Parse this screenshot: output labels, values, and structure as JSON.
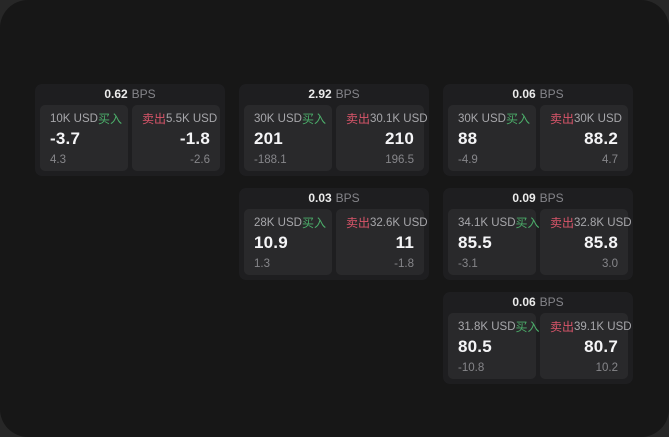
{
  "window": {
    "outer_bg": "#272727",
    "bg": "#171717"
  },
  "labels": {
    "buy": "买入",
    "sell": "卖出",
    "bps_unit": "BPS"
  },
  "colors": {
    "buy_green": "#4caf6b",
    "sell_red": "#d9556a",
    "card_bg": "#1e1e20",
    "panel_bg": "#29292b"
  },
  "cards": [
    {
      "bps": "0.62",
      "col": 1,
      "row": 1,
      "buy": {
        "notional": "10K USD",
        "value": "-3.7",
        "delta": "4.3"
      },
      "sell": {
        "notional": "5.5K USD",
        "value": "-1.8",
        "delta": "-2.6"
      }
    },
    {
      "bps": "2.92",
      "col": 2,
      "row": 1,
      "buy": {
        "notional": "30K USD",
        "value": "201",
        "delta": "-188.1"
      },
      "sell": {
        "notional": "30.1K USD",
        "value": "210",
        "delta": "196.5"
      }
    },
    {
      "bps": "0.06",
      "col": 3,
      "row": 1,
      "buy": {
        "notional": "30K USD",
        "value": "88",
        "delta": "-4.9"
      },
      "sell": {
        "notional": "30K USD",
        "value": "88.2",
        "delta": "4.7"
      }
    },
    {
      "bps": "0.03",
      "col": 2,
      "row": 2,
      "buy": {
        "notional": "28K USD",
        "value": "10.9",
        "delta": "1.3"
      },
      "sell": {
        "notional": "32.6K USD",
        "value": "11",
        "delta": "-1.8"
      }
    },
    {
      "bps": "0.09",
      "col": 3,
      "row": 2,
      "buy": {
        "notional": "34.1K USD",
        "value": "85.5",
        "delta": "-3.1"
      },
      "sell": {
        "notional": "32.8K USD",
        "value": "85.8",
        "delta": "3.0"
      }
    },
    {
      "bps": "0.06",
      "col": 3,
      "row": 3,
      "buy": {
        "notional": "31.8K USD",
        "value": "80.5",
        "delta": "-10.8"
      },
      "sell": {
        "notional": "39.1K USD",
        "value": "80.7",
        "delta": "10.2"
      }
    }
  ]
}
